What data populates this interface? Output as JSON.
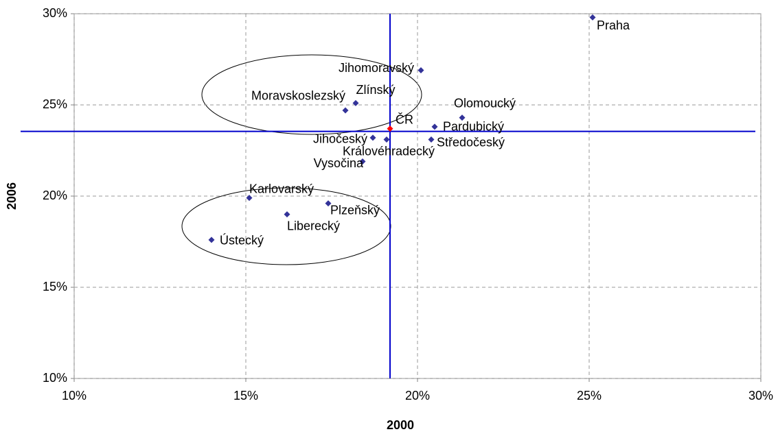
{
  "chart_data": {
    "type": "scatter",
    "x_label": "2000",
    "y_label": "2006",
    "labels": [
      "Praha",
      "Jihomoravský",
      "Zlínský",
      "Moravskoslezský",
      "Olomoucký",
      "ČR",
      "Pardubický",
      "Jihočeský",
      "Královéhradecký",
      "Středočeský",
      "Vysočina",
      "Karlovarský",
      "Plzeňský",
      "Liberecký",
      "Ústecký"
    ],
    "x": [
      25.1,
      20.1,
      18.2,
      17.9,
      21.3,
      19.2,
      20.5,
      18.7,
      19.1,
      20.4,
      18.4,
      15.1,
      17.4,
      16.2,
      14.0
    ],
    "values": [
      29.8,
      26.9,
      25.1,
      24.7,
      24.3,
      23.7,
      23.8,
      23.2,
      23.1,
      23.1,
      21.9,
      19.9,
      19.6,
      19.0,
      17.6
    ],
    "colors": [
      "#333399",
      "#333399",
      "#333399",
      "#333399",
      "#333399",
      "#ff0000",
      "#333399",
      "#333399",
      "#333399",
      "#333399",
      "#333399",
      "#333399",
      "#333399",
      "#333399",
      "#333399"
    ],
    "reference_line_color": "#0000cc",
    "xlim": [
      10,
      30
    ],
    "ylim": [
      10,
      30
    ],
    "xticks": [
      {
        "value": 10,
        "label": "10%"
      },
      {
        "value": 15,
        "label": "15%"
      },
      {
        "value": 20,
        "label": "20%"
      },
      {
        "value": 25,
        "label": "25%"
      },
      {
        "value": 30,
        "label": "30%"
      }
    ],
    "yticks": [
      {
        "value": 10,
        "label": "10%"
      },
      {
        "value": 15,
        "label": "15%"
      },
      {
        "value": 20,
        "label": "20%"
      },
      {
        "value": 25,
        "label": "25%"
      },
      {
        "value": 30,
        "label": "30%"
      }
    ],
    "grid": true
  }
}
